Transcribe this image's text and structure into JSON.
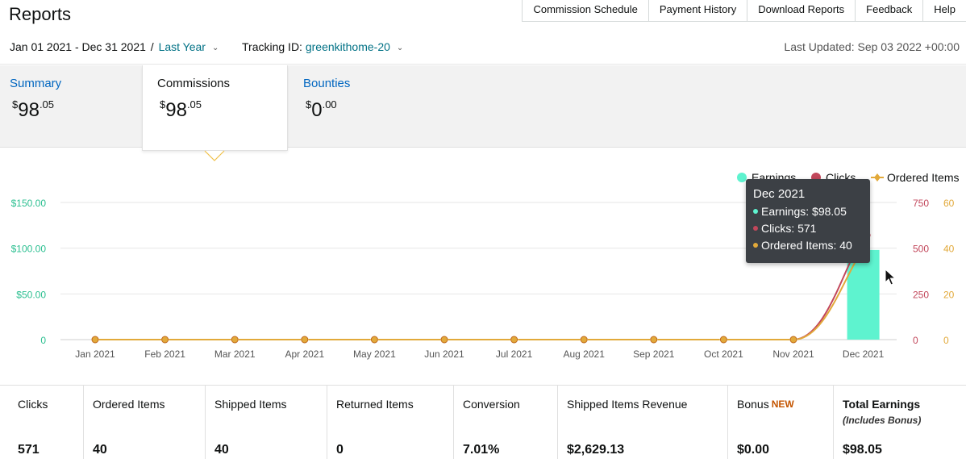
{
  "page": {
    "title": "Reports"
  },
  "top_nav": [
    "Commission Schedule",
    "Payment History",
    "Download Reports",
    "Feedback",
    "Help"
  ],
  "filters": {
    "date_range": "Jan 01 2021 - Dec 31 2021",
    "separator": "/",
    "period": "Last Year",
    "tracking_label": "Tracking ID:",
    "tracking_id": "greenkithome-20",
    "last_updated": "Last Updated: Sep 03 2022 +00:00"
  },
  "tabs": {
    "summary": {
      "label": "Summary",
      "currency": "$",
      "whole": "98",
      "cents": ".05"
    },
    "commissions": {
      "label": "Commissions",
      "currency": "$",
      "whole": "98",
      "cents": ".05"
    },
    "bounties": {
      "label": "Bounties",
      "currency": "$",
      "whole": "0",
      "cents": ".00"
    }
  },
  "colors": {
    "earnings": "#5ef3cf",
    "earnings_axis": "#2bbf90",
    "clicks": "#c2475b",
    "clicks_axis": "#c2475b",
    "ordered_items": "#e2a93a",
    "ordered_items_axis": "#e2a93a",
    "link": "#0066c0",
    "teal": "#007185",
    "new_badge": "#c45500"
  },
  "chart_data": {
    "type": "bar",
    "categories": [
      "Jan 2021",
      "Feb 2021",
      "Mar 2021",
      "Apr 2021",
      "May 2021",
      "Jun 2021",
      "Jul 2021",
      "Aug 2021",
      "Sep 2021",
      "Oct 2021",
      "Nov 2021",
      "Dec 2021"
    ],
    "legend_placement": "top-right",
    "grid": true,
    "series": [
      {
        "name": "Earnings",
        "kind": "bar",
        "axis": "left",
        "values": [
          0,
          0,
          0,
          0,
          0,
          0,
          0,
          0,
          0,
          0,
          0,
          98.05
        ]
      },
      {
        "name": "Clicks",
        "kind": "line",
        "axis": "right-1",
        "values": [
          0,
          0,
          0,
          0,
          0,
          0,
          0,
          0,
          0,
          0,
          0,
          571
        ]
      },
      {
        "name": "Ordered Items",
        "kind": "line",
        "axis": "right-2",
        "values": [
          0,
          0,
          0,
          0,
          0,
          0,
          0,
          0,
          0,
          0,
          0,
          40
        ]
      }
    ],
    "axes": {
      "left": {
        "ylim": [
          0,
          150
        ],
        "ticks": [
          "0",
          "$50.00",
          "$100.00",
          "$150.00"
        ]
      },
      "right1": {
        "ylim": [
          0,
          750
        ],
        "ticks": [
          "0",
          "250",
          "500",
          "750"
        ]
      },
      "right2": {
        "ylim": [
          0,
          60
        ],
        "ticks": [
          "0",
          "20",
          "40",
          "60"
        ]
      }
    }
  },
  "tooltip": {
    "title": "Dec 2021",
    "earnings": "Earnings: $98.05",
    "clicks": "Clicks: 571",
    "ordered_items": "Ordered Items: 40"
  },
  "metrics": [
    {
      "key": "clicks",
      "label": "Clicks",
      "value": "571"
    },
    {
      "key": "ordered-items",
      "label": "Ordered Items",
      "value": "40"
    },
    {
      "key": "shipped-items",
      "label": "Shipped Items",
      "value": "40"
    },
    {
      "key": "returned-items",
      "label": "Returned Items",
      "value": "0"
    },
    {
      "key": "conversion",
      "label": "Conversion",
      "value": "7.01%"
    },
    {
      "key": "shipped-items-revenue",
      "label": "Shipped Items Revenue",
      "value": "$2,629.13"
    },
    {
      "key": "bonus",
      "label": "Bonus",
      "badge": "NEW",
      "value": "$0.00"
    },
    {
      "key": "total-earnings",
      "label": "Total Earnings",
      "sub": "(Includes Bonus)",
      "value": "$98.05"
    }
  ]
}
